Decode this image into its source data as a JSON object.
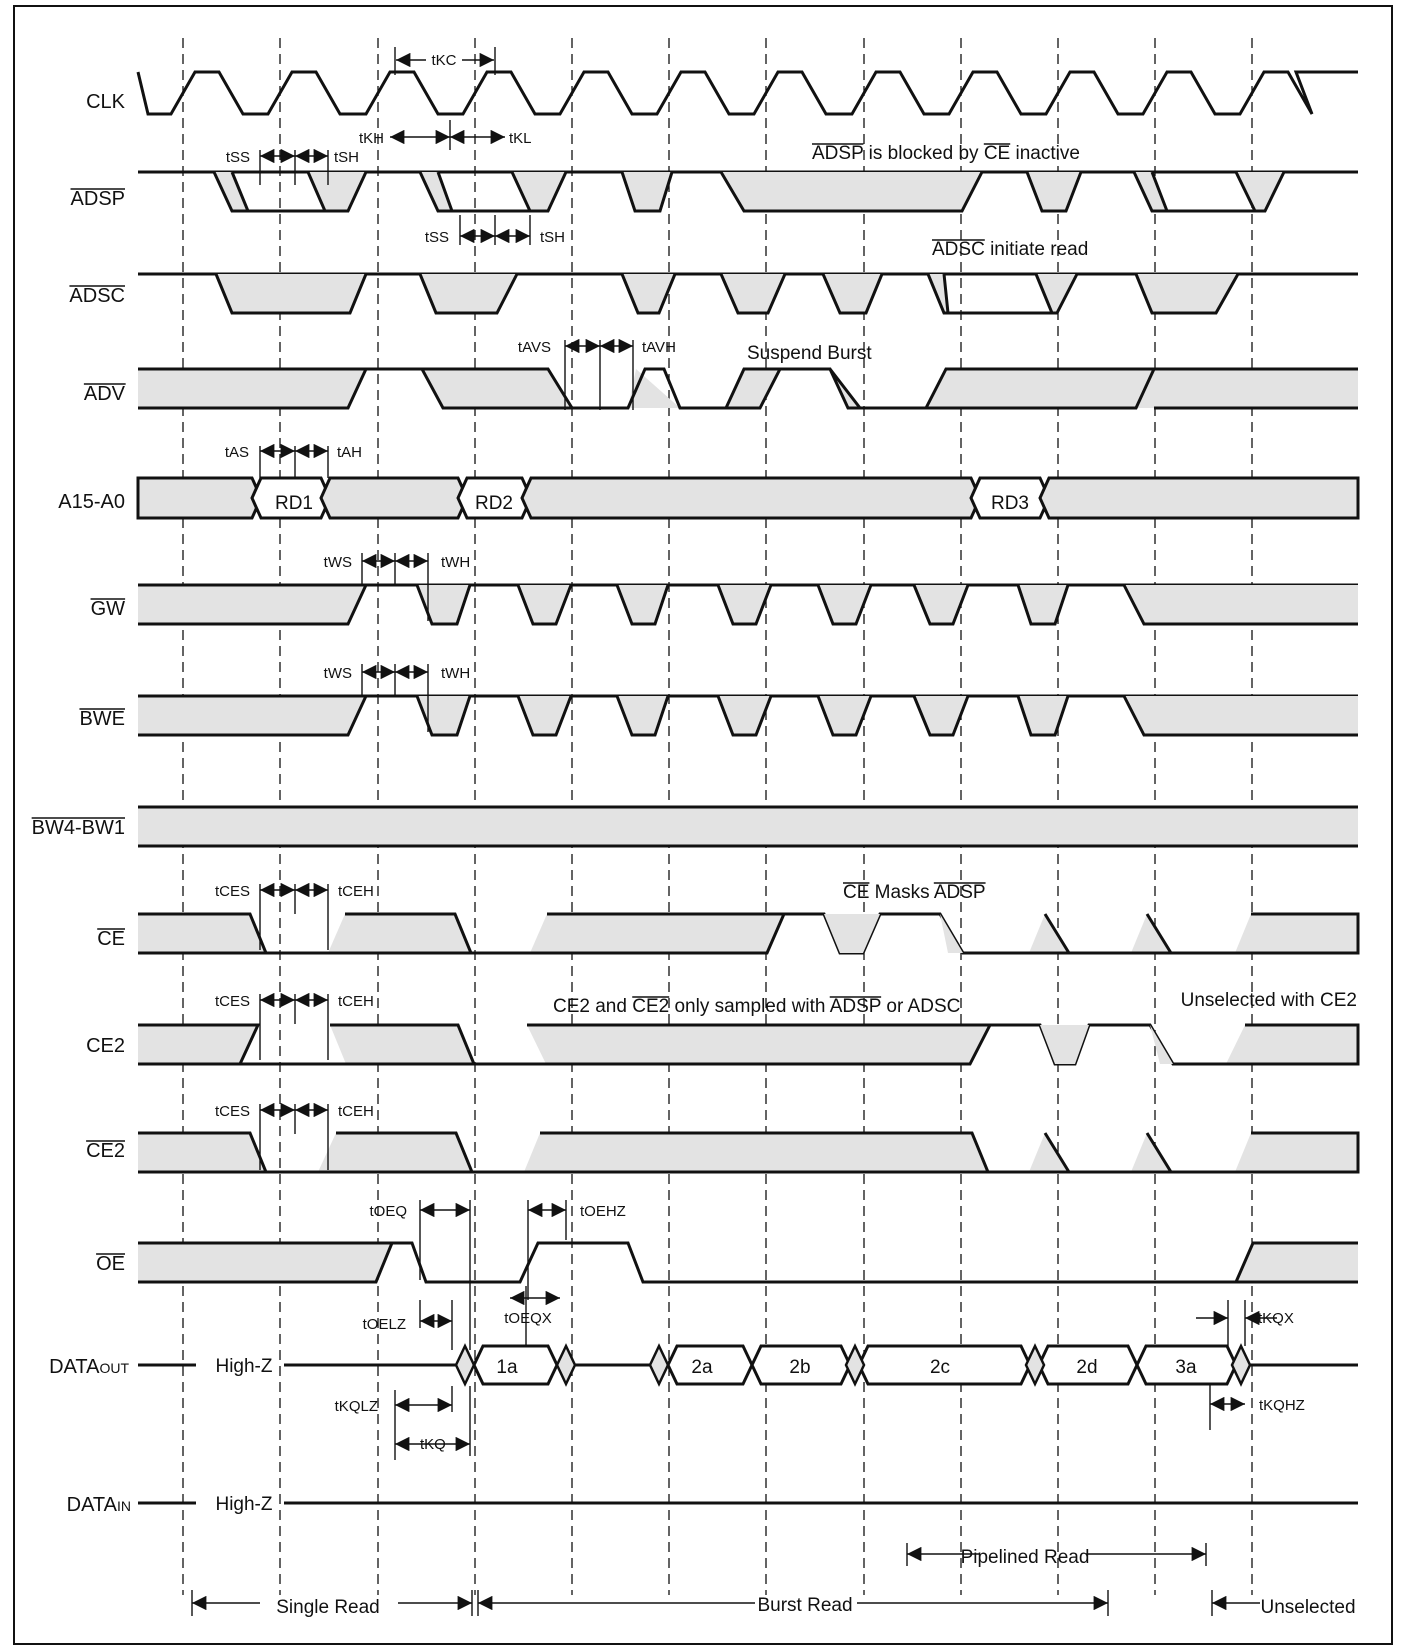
{
  "colors": {
    "line": "#111111",
    "fill": "#e3e3e3",
    "background": "#ffffff"
  },
  "signals": [
    {
      "id": "clk",
      "label": "CLK"
    },
    {
      "id": "adsp",
      "label": "ADSP",
      "overline": true
    },
    {
      "id": "adsc",
      "label": "ADSC",
      "overline": true
    },
    {
      "id": "adv",
      "label": "ADV",
      "overline": true
    },
    {
      "id": "addr",
      "label": "A15-A0"
    },
    {
      "id": "gw",
      "label": "GW",
      "overline": true
    },
    {
      "id": "bwe",
      "label": "BWE",
      "overline": true
    },
    {
      "id": "bw",
      "label": "BW4-BW1",
      "overline": true
    },
    {
      "id": "ce",
      "label": "CE",
      "overline": true
    },
    {
      "id": "ce2",
      "label": "CE2"
    },
    {
      "id": "ce2n",
      "label": "CE2",
      "overline": true
    },
    {
      "id": "oe",
      "label": "OE",
      "overline": true
    },
    {
      "id": "dataout",
      "label": "DATA",
      "sub": "OUT"
    },
    {
      "id": "datain",
      "label": "DATA",
      "sub": "IN"
    }
  ],
  "bus_values": {
    "address": [
      "RD1",
      "RD2",
      "RD3"
    ],
    "data_out": [
      "1a",
      "2a",
      "2b",
      "2c",
      "2d",
      "3a"
    ],
    "high_z": "High-Z"
  },
  "timing_labels": {
    "tkc": "tKC",
    "tkh": "tKH",
    "tkl": "tKL",
    "tss": "tSS",
    "tsh": "tSH",
    "tavs": "tAVS",
    "tavh": "tAVH",
    "tas": "tAS",
    "tah": "tAH",
    "tws": "tWS",
    "twh": "tWH",
    "tces": "tCES",
    "tceh": "tCEH",
    "toeq": "tOEQ",
    "toehz": "tOEHZ",
    "toelz": "tOELZ",
    "toeqx": "tOEQX",
    "tkqlz": "tKQLZ",
    "tkq": "tKQ",
    "tkqx": "tKQX",
    "tkqhz": "tKQHZ"
  },
  "annotations": {
    "adsp_blocked": [
      "ADSP",
      " is blocked by ",
      "CE",
      " inactive"
    ],
    "adsc_init": [
      "ADSC",
      " initiate read"
    ],
    "suspend": "Suspend Burst",
    "ce_masks": [
      "CE",
      " Masks ",
      "ADSP"
    ],
    "ce2_sampled": [
      "CE2 and ",
      "CE2",
      " only sampled with ",
      "ADSP",
      " or ADSC"
    ],
    "unselected_ce2": "Unselected with CE2"
  },
  "phases": {
    "single": "Single Read",
    "burst": "Burst Read",
    "pipelined": "Pipelined Read",
    "unselected": "Unselected"
  }
}
